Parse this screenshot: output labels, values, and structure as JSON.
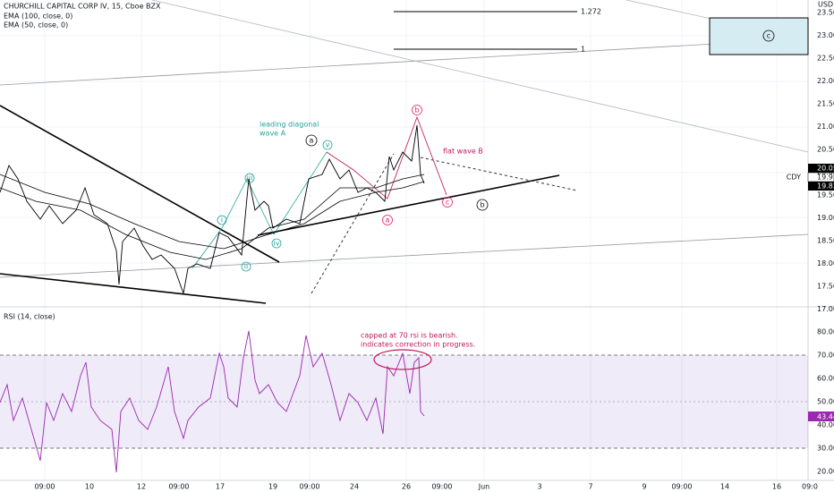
{
  "header": {
    "symbol": "CHURCHILL CAPITAL CORP IV, 15, Cboe BZX",
    "ema100": "EMA (100, close, 0)",
    "ema50": "EMA (50, close, 0)",
    "rsi": "RSI (14, close)"
  },
  "price_axis": {
    "currency": "USD",
    "labels": [
      "23.50",
      "23.00",
      "22.50",
      "22.00",
      "21.50",
      "21.00",
      "20.50",
      "20.00",
      "19.50",
      "19.00",
      "18.50",
      "18.00",
      "17.50",
      "17.00"
    ],
    "last": "20.05",
    "ema_a": "19.93",
    "ema_b": "19.82",
    "symbol_tag": "CDY"
  },
  "rsi_axis": {
    "labels": [
      "80.00",
      "70.00",
      "60.00",
      "50.00",
      "40.00",
      "30.00",
      "20.00"
    ],
    "last": "43.44"
  },
  "time_axis": [
    "09:00",
    "10",
    "12",
    "09:00",
    "17",
    "19",
    "09:00",
    "24",
    "26",
    "09:00",
    "Jun",
    "3",
    "7",
    "9",
    "09:00",
    "14",
    "16",
    "09:0"
  ],
  "annotations": {
    "fib_1272": "1.272",
    "fib_1": "1",
    "leading": "leading diagonal",
    "wave_a": "wave A",
    "flat": "flat wave B",
    "rsi_note1": "capped at 70 rsi is bearish.",
    "rsi_note2": "indicates correction in progress.",
    "waves": {
      "i": "i",
      "ii": "ii",
      "iii": "iii",
      "iv": "iv",
      "v": "v",
      "A": "a",
      "B": "b",
      "C": "c",
      "pa": "a",
      "pb": "b",
      "pc": "c",
      "box_c": "c"
    }
  }
}
